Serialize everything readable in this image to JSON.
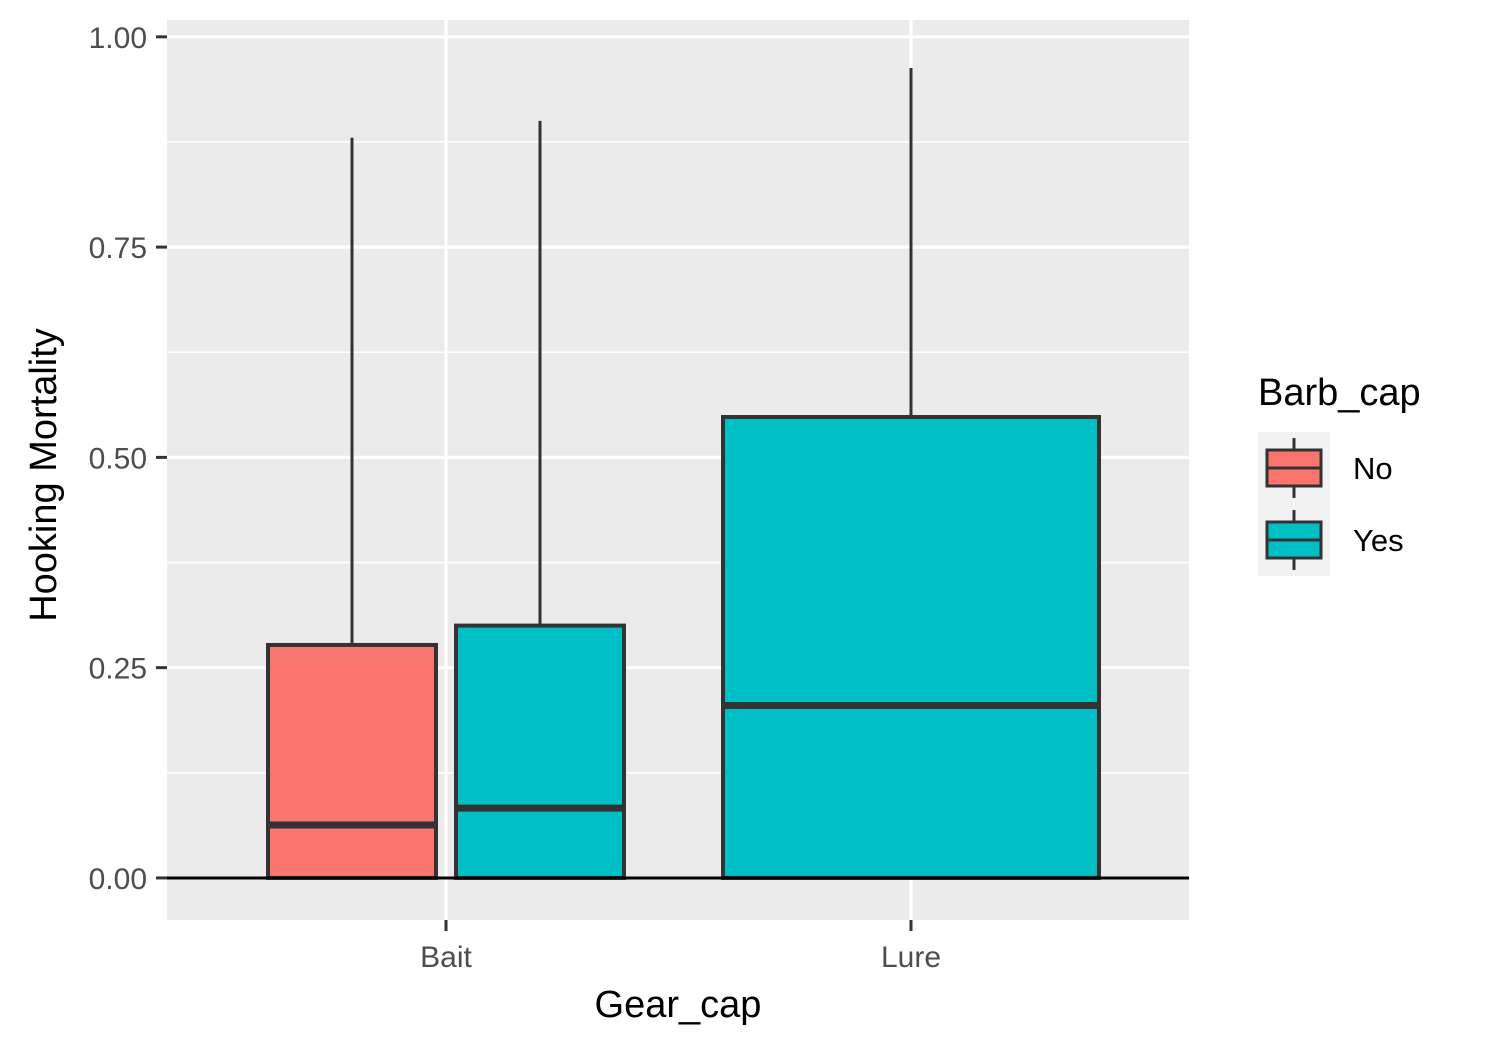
{
  "chart_data": {
    "type": "boxplot",
    "title": "",
    "xlabel": "Gear_cap",
    "ylabel": "Hooking Mortality",
    "categories": [
      "Bait",
      "Lure"
    ],
    "ylim": [
      -0.05,
      1.02
    ],
    "yticks": [
      {
        "value": 0.0,
        "label": "0.00"
      },
      {
        "value": 0.25,
        "label": "0.25"
      },
      {
        "value": 0.5,
        "label": "0.50"
      },
      {
        "value": 0.75,
        "label": "0.75"
      },
      {
        "value": 1.0,
        "label": "1.00"
      }
    ],
    "grid": true,
    "legend": {
      "title": "Barb_cap",
      "position": "right",
      "entries": [
        {
          "name": "No",
          "color": "#F8766D"
        },
        {
          "name": "Yes",
          "color": "#00BFC4"
        }
      ]
    },
    "series": [
      {
        "name": "No",
        "color": "#F8766D",
        "boxes": [
          {
            "category": "Bait",
            "min": 0.0,
            "q1": 0.0,
            "median": 0.063,
            "q3": 0.277,
            "max": 0.88
          }
        ]
      },
      {
        "name": "Yes",
        "color": "#00BFC4",
        "boxes": [
          {
            "category": "Bait",
            "min": 0.0,
            "q1": 0.0,
            "median": 0.083,
            "q3": 0.3,
            "max": 0.9
          },
          {
            "category": "Lure",
            "min": 0.0,
            "q1": 0.0,
            "median": 0.205,
            "q3": 0.548,
            "max": 0.963
          }
        ]
      }
    ],
    "reference_line": {
      "y": 0.0,
      "color": "#000000"
    },
    "colors": {
      "panel": "#EBEBEB",
      "grid": "#FFFFFF",
      "box_outline": "#333333",
      "tick": "#333333"
    }
  }
}
